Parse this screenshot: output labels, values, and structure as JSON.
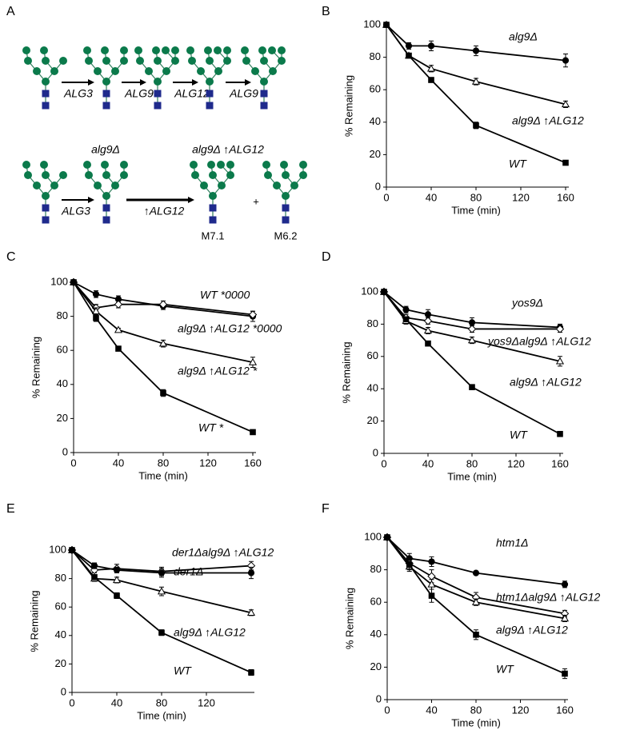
{
  "diagram": {
    "panel": "A",
    "row1": {
      "enzymes": [
        "ALG3",
        "ALG9",
        "ALG12",
        "ALG9"
      ]
    },
    "row2": {
      "strain_labels": [
        "alg9Δ",
        "alg9Δ ↑ALG12"
      ],
      "enzymes": [
        "ALG3",
        "↑ALG12"
      ],
      "plus": "+",
      "products": [
        "M7.1",
        "M6.2"
      ]
    }
  },
  "chart_data": [
    {
      "panel": "B",
      "type": "line",
      "xlabel": "Time (min)",
      "ylabel": "% Remaining",
      "x": [
        0,
        20,
        40,
        80,
        160
      ],
      "xlim": [
        0,
        160
      ],
      "xticks": [
        0,
        40,
        80,
        120,
        160
      ],
      "ylim": [
        0,
        100
      ],
      "yticks": [
        0,
        20,
        40,
        60,
        80,
        100
      ],
      "grid": false,
      "series": [
        {
          "name": "alg9Δ",
          "color": "#000000",
          "marker": "circle",
          "filled": true,
          "values": [
            100,
            87,
            87,
            84,
            78
          ],
          "errors": [
            1,
            2,
            3,
            3,
            4
          ]
        },
        {
          "name": "alg9Δ ↑ALG12",
          "color": "#000000",
          "marker": "triangle",
          "filled": false,
          "values": [
            100,
            81,
            73,
            65,
            51
          ],
          "errors": [
            1,
            1,
            2,
            2,
            2
          ]
        },
        {
          "name": "WT",
          "color": "#000000",
          "marker": "square",
          "filled": true,
          "values": [
            100,
            81,
            66,
            38,
            15
          ],
          "errors": [
            1,
            1,
            1,
            2,
            1
          ]
        }
      ]
    },
    {
      "panel": "C",
      "type": "line",
      "xlabel": "Time (min)",
      "ylabel": "% Remaining",
      "x": [
        0,
        20,
        40,
        80,
        160
      ],
      "xlim": [
        0,
        160
      ],
      "xticks": [
        0,
        40,
        80,
        120,
        160
      ],
      "ylim": [
        0,
        100
      ],
      "yticks": [
        0,
        20,
        40,
        60,
        80,
        100
      ],
      "grid": false,
      "series": [
        {
          "name": "WT *0000",
          "color": "#000000",
          "marker": "circle",
          "filled": true,
          "values": [
            100,
            93,
            90,
            86,
            80
          ],
          "errors": [
            1,
            2,
            2,
            2,
            3
          ]
        },
        {
          "name": "alg9Δ ↑ALG12 *0000",
          "color": "#000000",
          "marker": "diamond",
          "filled": false,
          "values": [
            100,
            85,
            87,
            87,
            81
          ],
          "errors": [
            1,
            2,
            2,
            2,
            2
          ]
        },
        {
          "name": "alg9Δ ↑ALG12 *",
          "color": "#000000",
          "marker": "triangle",
          "filled": false,
          "values": [
            100,
            83,
            72,
            64,
            53
          ],
          "errors": [
            1,
            2,
            1,
            2,
            3
          ]
        },
        {
          "name": "WT *",
          "color": "#000000",
          "marker": "square",
          "filled": true,
          "values": [
            100,
            79,
            61,
            35,
            12
          ],
          "errors": [
            1,
            2,
            1,
            2,
            1
          ]
        }
      ]
    },
    {
      "panel": "D",
      "type": "line",
      "xlabel": "Time (min)",
      "ylabel": "% Remaining",
      "x": [
        0,
        20,
        40,
        80,
        160
      ],
      "xlim": [
        0,
        160
      ],
      "xticks": [
        0,
        40,
        80,
        120,
        160
      ],
      "ylim": [
        0,
        100
      ],
      "yticks": [
        0,
        20,
        40,
        60,
        80,
        100
      ],
      "grid": false,
      "series": [
        {
          "name": "yos9Δ",
          "color": "#000000",
          "marker": "circle",
          "filled": true,
          "values": [
            100,
            89,
            86,
            81,
            78
          ],
          "errors": [
            1,
            2,
            3,
            3,
            2
          ]
        },
        {
          "name": "yos9Δalg9Δ ↑ALG12",
          "color": "#000000",
          "marker": "diamond",
          "filled": false,
          "values": [
            100,
            84,
            82,
            77,
            77
          ],
          "errors": [
            1,
            2,
            2,
            2,
            2
          ]
        },
        {
          "name": "alg9Δ ↑ALG12",
          "color": "#000000",
          "marker": "triangle",
          "filled": false,
          "values": [
            100,
            82,
            76,
            70,
            57
          ],
          "errors": [
            1,
            2,
            2,
            2,
            3
          ]
        },
        {
          "name": "WT",
          "color": "#000000",
          "marker": "square",
          "filled": true,
          "values": [
            100,
            83,
            68,
            41,
            12
          ],
          "errors": [
            1,
            1,
            1,
            1,
            1
          ]
        }
      ]
    },
    {
      "panel": "E",
      "type": "line",
      "xlabel": "Time (min)",
      "ylabel": "% Remaining",
      "x": [
        0,
        20,
        40,
        80,
        160
      ],
      "xlim": [
        0,
        160
      ],
      "xticks": [
        0,
        40,
        80,
        120
      ],
      "ylim": [
        0,
        100
      ],
      "yticks": [
        0,
        20,
        40,
        60,
        80,
        100
      ],
      "grid": false,
      "series": [
        {
          "name": "der1Δalg9Δ ↑ALG12",
          "color": "#000000",
          "marker": "diamond",
          "filled": false,
          "values": [
            100,
            86,
            87,
            85,
            89
          ],
          "errors": [
            1,
            2,
            3,
            3,
            3
          ]
        },
        {
          "name": "der1Δ",
          "color": "#000000",
          "marker": "circle",
          "filled": true,
          "values": [
            100,
            89,
            86,
            84,
            84
          ],
          "errors": [
            1,
            2,
            2,
            3,
            4
          ]
        },
        {
          "name": "alg9Δ ↑ALG12",
          "color": "#000000",
          "marker": "triangle",
          "filled": false,
          "values": [
            100,
            80,
            79,
            71,
            56
          ],
          "errors": [
            1,
            2,
            2,
            3,
            2
          ]
        },
        {
          "name": "WT",
          "color": "#000000",
          "marker": "square",
          "filled": true,
          "values": [
            100,
            81,
            68,
            42,
            14
          ],
          "errors": [
            1,
            1,
            2,
            2,
            2
          ]
        }
      ]
    },
    {
      "panel": "F",
      "type": "line",
      "xlabel": "Time (min)",
      "ylabel": "% Remaining",
      "x": [
        0,
        20,
        40,
        80,
        160
      ],
      "xlim": [
        0,
        160
      ],
      "xticks": [
        0,
        40,
        80,
        120,
        160
      ],
      "ylim": [
        0,
        100
      ],
      "yticks": [
        0,
        20,
        40,
        60,
        80,
        100
      ],
      "grid": false,
      "series": [
        {
          "name": "htm1Δ",
          "color": "#000000",
          "marker": "circle",
          "filled": true,
          "values": [
            100,
            87,
            85,
            78,
            71
          ],
          "errors": [
            1,
            3,
            3,
            1,
            2
          ]
        },
        {
          "name": "htm1Δalg9Δ ↑ALG12",
          "color": "#000000",
          "marker": "diamond",
          "filled": false,
          "values": [
            100,
            84,
            76,
            63,
            53
          ],
          "errors": [
            1,
            3,
            4,
            3,
            2
          ]
        },
        {
          "name": "alg9Δ ↑ALG12",
          "color": "#000000",
          "marker": "triangle",
          "filled": false,
          "values": [
            100,
            82,
            71,
            60,
            50
          ],
          "errors": [
            1,
            3,
            3,
            2,
            2
          ]
        },
        {
          "name": "WT",
          "color": "#000000",
          "marker": "square",
          "filled": true,
          "values": [
            100,
            83,
            64,
            40,
            16
          ],
          "errors": [
            1,
            3,
            4,
            3,
            3
          ]
        }
      ]
    }
  ]
}
